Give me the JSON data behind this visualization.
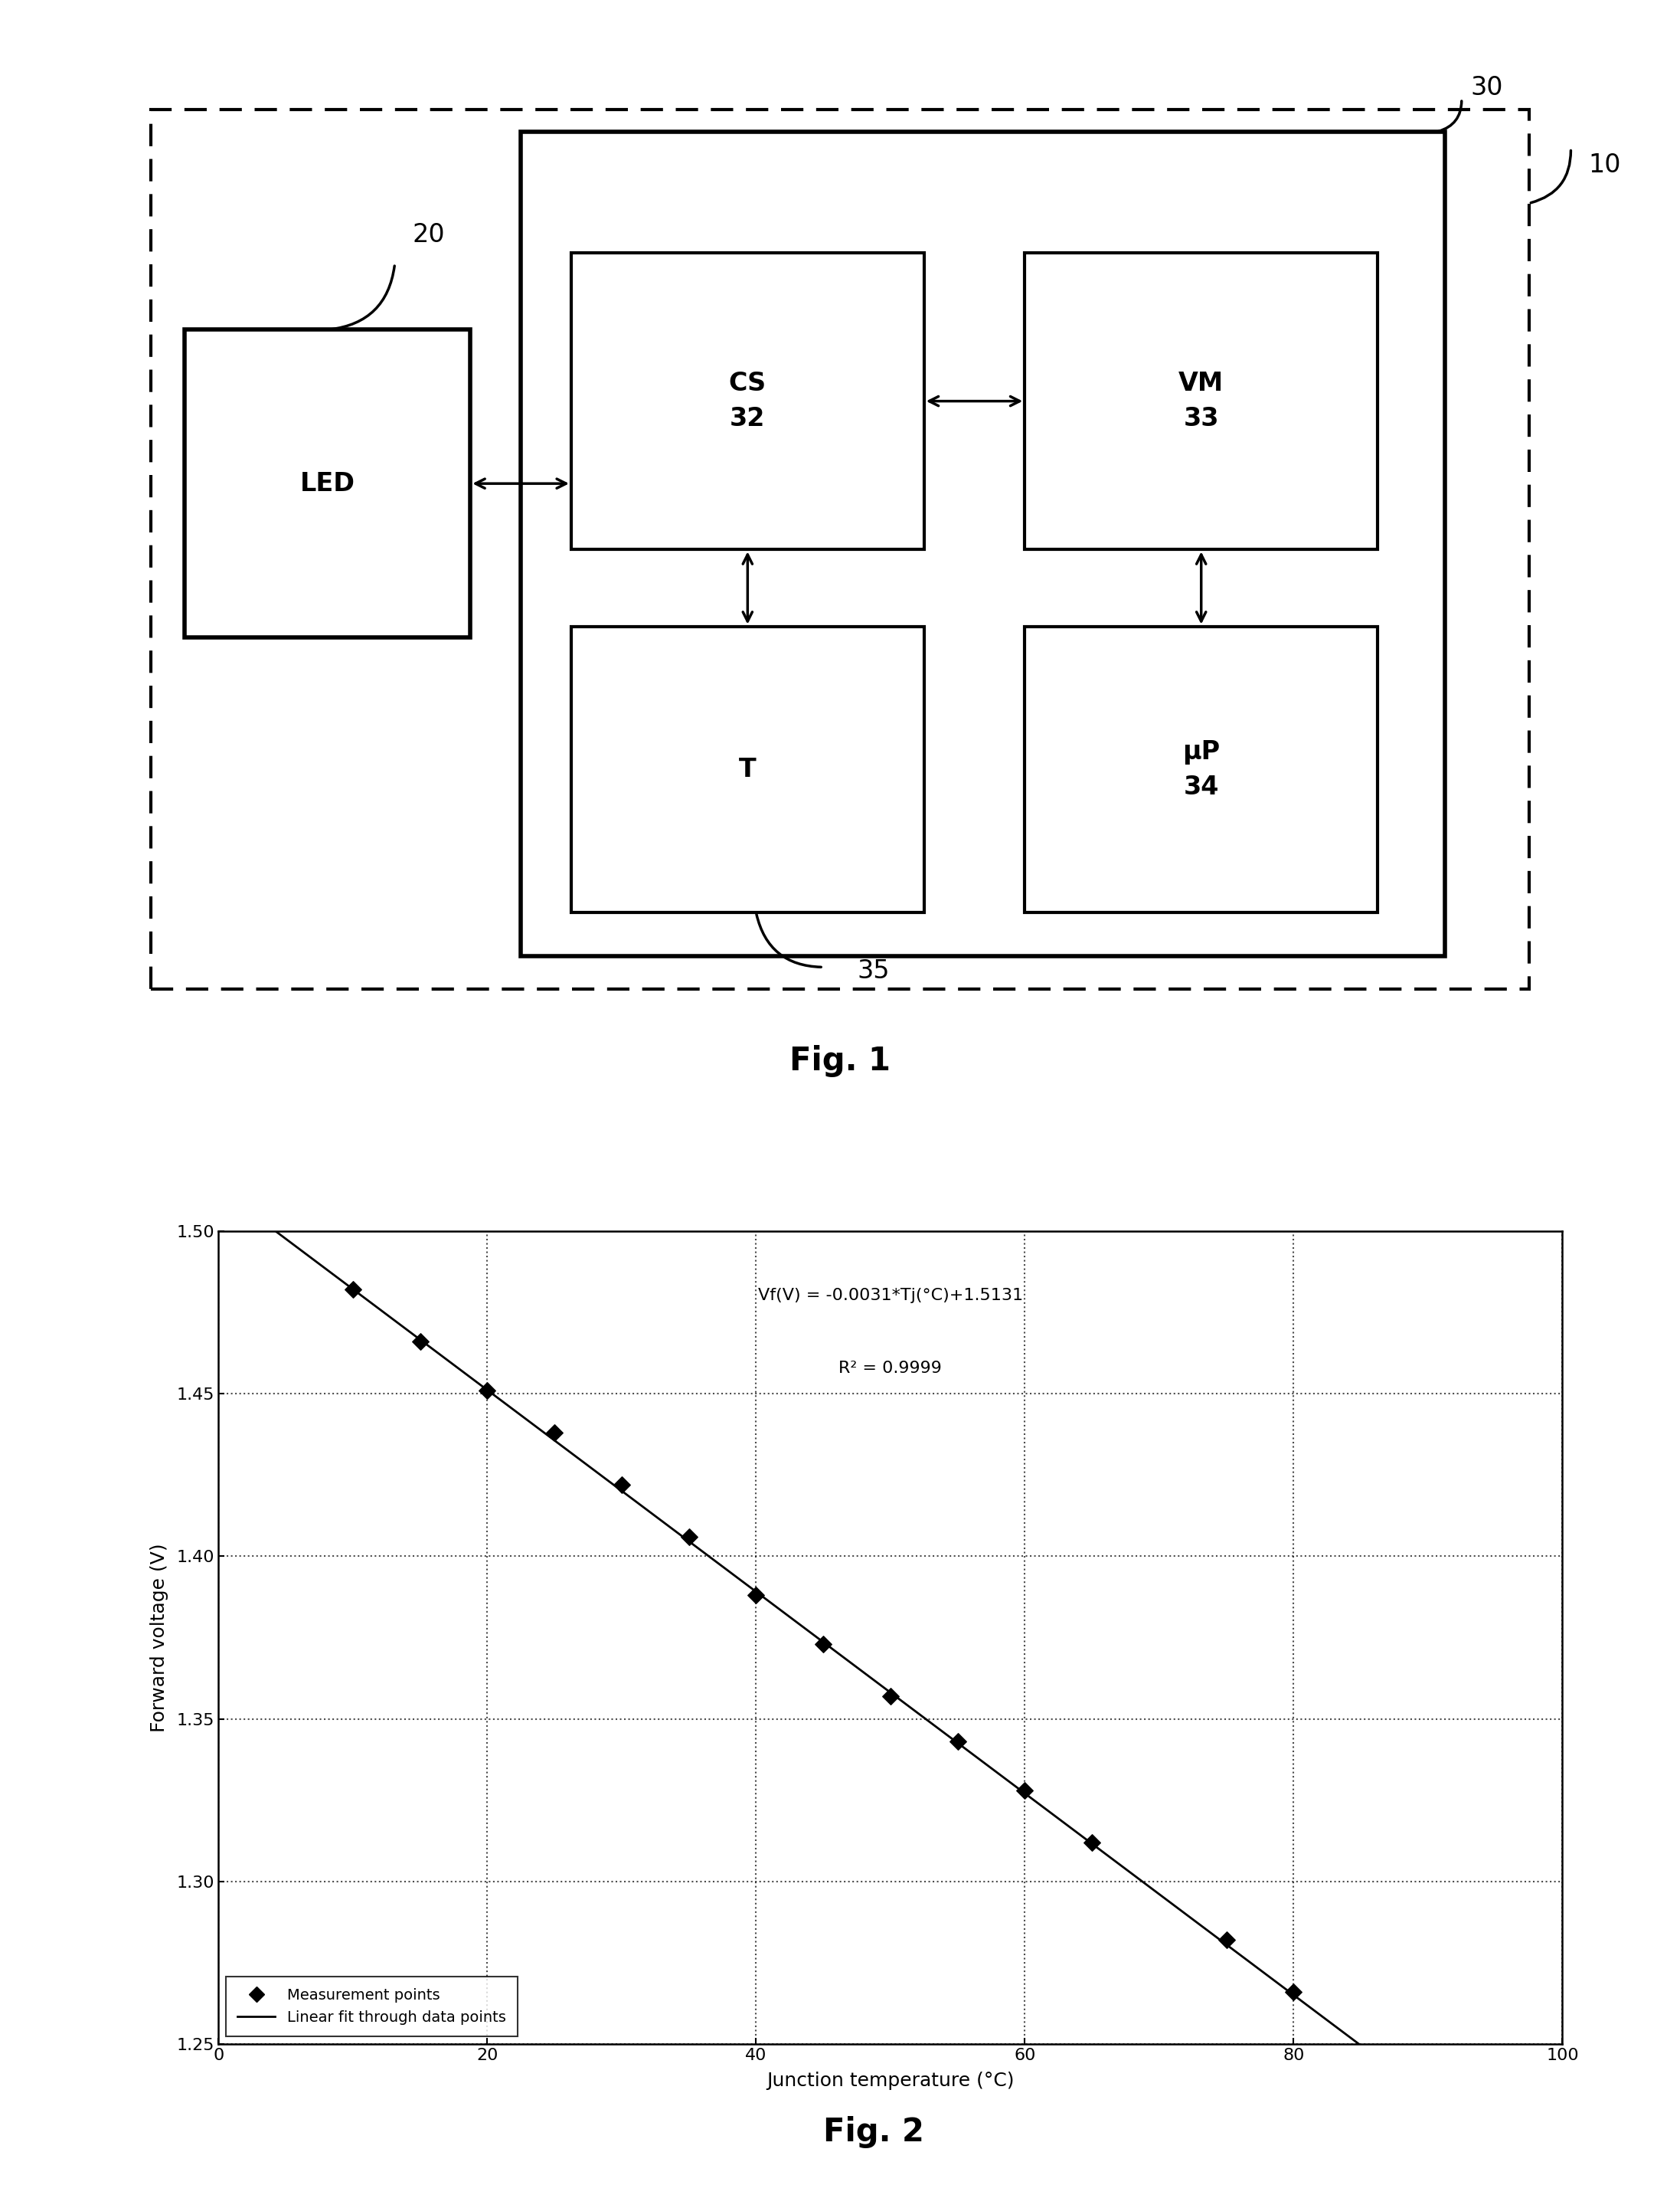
{
  "fig1_label": "Fig. 1",
  "fig2_label": "Fig. 2",
  "circuit": {
    "outer_label": "10",
    "inner_label": "30",
    "led_text": "LED",
    "led_ref": "20",
    "cs_text": "CS\n32",
    "vm_text": "VM\n33",
    "t_text": "T",
    "up_text": "μP\n34",
    "ref35": "35"
  },
  "graph": {
    "eq_line1": "Vf(V) = -0.0031*Tj(°C)+1.5131",
    "eq_line2": "R² = 0.9999",
    "xlabel": "Junction temperature (°C)",
    "ylabel": "Forward voltage (V)",
    "xlim": [
      0,
      100
    ],
    "ylim": [
      1.25,
      1.5
    ],
    "xticks": [
      0,
      20,
      40,
      60,
      80,
      100
    ],
    "yticks": [
      1.25,
      1.3,
      1.35,
      1.4,
      1.45,
      1.5
    ],
    "data_x": [
      10,
      15,
      20,
      25,
      30,
      35,
      40,
      45,
      50,
      55,
      60,
      65,
      75,
      80
    ],
    "data_y": [
      1.482,
      1.466,
      1.451,
      1.438,
      1.422,
      1.406,
      1.388,
      1.373,
      1.357,
      1.343,
      1.328,
      1.312,
      1.282,
      1.266
    ],
    "slope": -0.0031,
    "intercept": 1.5131,
    "legend_marker_label": "Measurement points",
    "legend_line_label": "Linear fit through data points"
  }
}
